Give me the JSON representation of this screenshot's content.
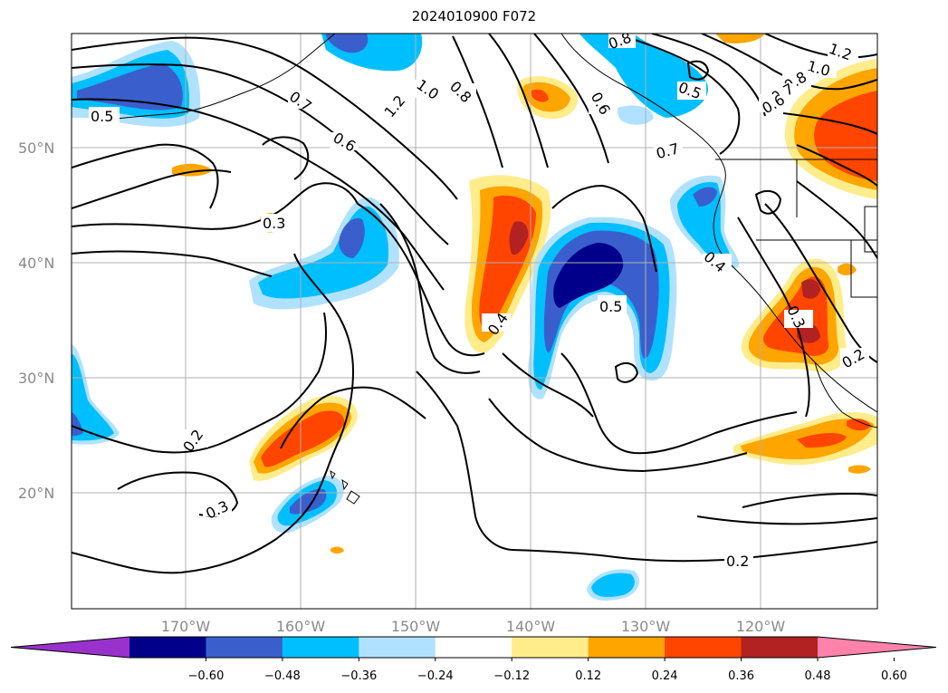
{
  "title": "2024010900 F072",
  "lat_labels": [
    "50°N",
    "40°N",
    "30°N",
    "20°N"
  ],
  "lon_labels": [
    "170°W",
    "160°W",
    "150°W",
    "140°W",
    "130°W",
    "120°W"
  ],
  "colorbar": {
    "ticks": [
      "−0.60",
      "−0.48",
      "−0.36",
      "−0.24",
      "−0.12",
      "0.12",
      "0.24",
      "0.36",
      "0.48",
      "0.60"
    ],
    "colors": [
      "#9932cc",
      "#00008b",
      "#3a5fcd",
      "#00bfff",
      "#b0e2ff",
      "#ffffff",
      "#ffec8b",
      "#ffa500",
      "#ff4500",
      "#b22222",
      "#ff82ab"
    ]
  },
  "contour_labels": [
    "0.5",
    "0.7",
    "0.6",
    "1.2",
    "1.0",
    "0.8",
    "0.3",
    "0.4",
    "0.5",
    "0.2",
    "0.3",
    "0.2",
    "0.6",
    "0.5",
    "0.7",
    "0.4",
    "0.3",
    "0.2",
    "1.2",
    "1.0",
    "0.8",
    "0.7",
    "0.6",
    "0.8"
  ],
  "fill_colors": {
    "light_blue": "#b0e2ff",
    "sky_blue": "#00bfff",
    "royal_blue": "#3a5fcd",
    "navy": "#00008b",
    "yellow": "#ffec8b",
    "orange": "#ffa500",
    "red_orange": "#ff4500",
    "firebrick": "#b22222"
  }
}
